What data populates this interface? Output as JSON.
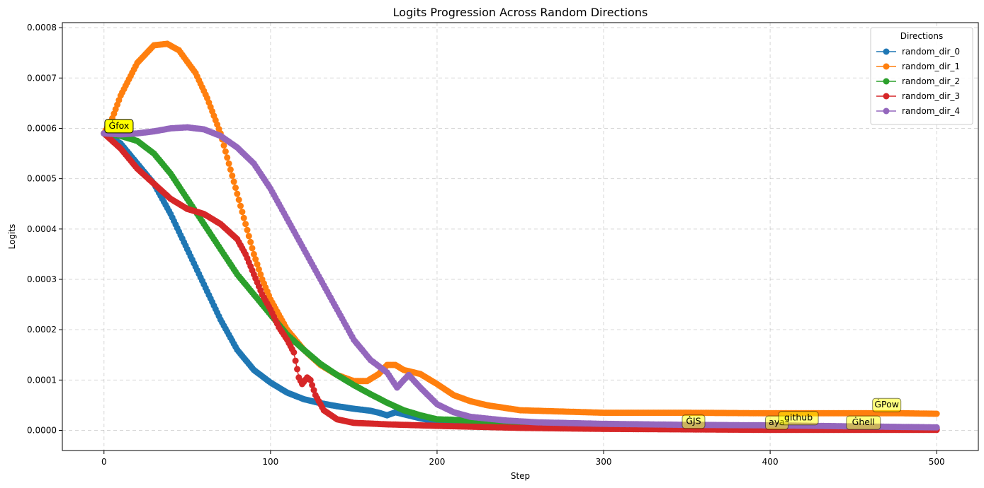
{
  "chart_data": {
    "type": "line",
    "title": "Logits Progression Across Random Directions",
    "xlabel": "Step",
    "ylabel": "Logits",
    "xlim": [
      -25,
      525
    ],
    "ylim": [
      -4e-05,
      0.00081
    ],
    "xticks": [
      0,
      100,
      200,
      300,
      400,
      500
    ],
    "yticks": [
      0.0,
      0.0001,
      0.0002,
      0.0003,
      0.0004,
      0.0005,
      0.0006,
      0.0007,
      0.0008
    ],
    "ytick_labels": [
      "0.0000",
      "0.0001",
      "0.0002",
      "0.0003",
      "0.0004",
      "0.0005",
      "0.0006",
      "0.0007",
      "0.0008"
    ],
    "grid": true,
    "legend": {
      "title": "Directions",
      "placement": "top-right"
    },
    "series": [
      {
        "name": "random_dir_0",
        "color": "#1f77b4",
        "points": [
          [
            0,
            0.00059
          ],
          [
            10,
            0.00057
          ],
          [
            20,
            0.00053
          ],
          [
            30,
            0.00049
          ],
          [
            40,
            0.00043
          ],
          [
            50,
            0.00036
          ],
          [
            60,
            0.00029
          ],
          [
            70,
            0.00022
          ],
          [
            80,
            0.00016
          ],
          [
            90,
            0.00012
          ],
          [
            100,
            9.5e-05
          ],
          [
            110,
            7.5e-05
          ],
          [
            120,
            6.2e-05
          ],
          [
            130,
            5.4e-05
          ],
          [
            140,
            4.8e-05
          ],
          [
            150,
            4.3e-05
          ],
          [
            160,
            3.9e-05
          ],
          [
            165,
            3.5e-05
          ],
          [
            170,
            3e-05
          ],
          [
            175,
            3.6e-05
          ],
          [
            180,
            3.2e-05
          ],
          [
            190,
            2.4e-05
          ],
          [
            200,
            1.7e-05
          ],
          [
            220,
            1.1e-05
          ],
          [
            250,
            8e-06
          ],
          [
            300,
            6e-06
          ],
          [
            350,
            5e-06
          ],
          [
            400,
            4e-06
          ],
          [
            450,
            4e-06
          ],
          [
            500,
            3e-06
          ]
        ]
      },
      {
        "name": "random_dir_1",
        "color": "#ff7f0e",
        "points": [
          [
            0,
            0.00059
          ],
          [
            5,
            0.00062
          ],
          [
            10,
            0.000665
          ],
          [
            20,
            0.00073
          ],
          [
            30,
            0.000765
          ],
          [
            38,
            0.000768
          ],
          [
            45,
            0.000755
          ],
          [
            55,
            0.00071
          ],
          [
            62,
            0.00066
          ],
          [
            70,
            0.00059
          ],
          [
            75,
            0.00053
          ],
          [
            80,
            0.00047
          ],
          [
            85,
            0.00041
          ],
          [
            90,
            0.00035
          ],
          [
            95,
            0.0003
          ],
          [
            100,
            0.00026
          ],
          [
            110,
            0.0002
          ],
          [
            120,
            0.00016
          ],
          [
            130,
            0.00013
          ],
          [
            140,
            0.00011
          ],
          [
            150,
            9.8e-05
          ],
          [
            158,
            9.8e-05
          ],
          [
            165,
            0.000112
          ],
          [
            170,
            0.00013
          ],
          [
            175,
            0.00013
          ],
          [
            180,
            0.00012
          ],
          [
            190,
            0.000112
          ],
          [
            200,
            9.2e-05
          ],
          [
            210,
            7e-05
          ],
          [
            220,
            5.8e-05
          ],
          [
            230,
            5e-05
          ],
          [
            250,
            4e-05
          ],
          [
            270,
            3.8e-05
          ],
          [
            300,
            3.5e-05
          ],
          [
            350,
            3.5e-05
          ],
          [
            400,
            3.4e-05
          ],
          [
            450,
            3.4e-05
          ],
          [
            480,
            3.4e-05
          ],
          [
            500,
            3.3e-05
          ]
        ]
      },
      {
        "name": "random_dir_2",
        "color": "#2ca02c",
        "points": [
          [
            0,
            0.00059
          ],
          [
            10,
            0.000585
          ],
          [
            20,
            0.000575
          ],
          [
            30,
            0.00055
          ],
          [
            40,
            0.00051
          ],
          [
            50,
            0.00046
          ],
          [
            60,
            0.00041
          ],
          [
            70,
            0.00036
          ],
          [
            80,
            0.00031
          ],
          [
            90,
            0.00027
          ],
          [
            100,
            0.00023
          ],
          [
            110,
            0.00019
          ],
          [
            120,
            0.00016
          ],
          [
            130,
            0.000132
          ],
          [
            140,
            0.00011
          ],
          [
            150,
            9e-05
          ],
          [
            160,
            7.2e-05
          ],
          [
            170,
            5.5e-05
          ],
          [
            180,
            4e-05
          ],
          [
            190,
            3e-05
          ],
          [
            200,
            2.2e-05
          ],
          [
            210,
            2.1e-05
          ],
          [
            230,
            1.8e-05
          ],
          [
            250,
            1.2e-05
          ],
          [
            300,
            7e-06
          ],
          [
            350,
            5e-06
          ],
          [
            400,
            4e-06
          ],
          [
            450,
            4e-06
          ],
          [
            500,
            3e-06
          ]
        ]
      },
      {
        "name": "random_dir_3",
        "color": "#d62728",
        "points": [
          [
            0,
            0.00059
          ],
          [
            10,
            0.00056
          ],
          [
            20,
            0.00052
          ],
          [
            30,
            0.00049
          ],
          [
            40,
            0.00046
          ],
          [
            50,
            0.00044
          ],
          [
            60,
            0.00043
          ],
          [
            70,
            0.00041
          ],
          [
            80,
            0.00038
          ],
          [
            85,
            0.00035
          ],
          [
            90,
            0.00031
          ],
          [
            95,
            0.00027
          ],
          [
            100,
            0.00024
          ],
          [
            105,
            0.000205
          ],
          [
            110,
            0.00018
          ],
          [
            114,
            0.000155
          ],
          [
            117,
            0.000105
          ],
          [
            119,
            9.2e-05
          ],
          [
            122,
            0.000105
          ],
          [
            124,
            0.0001
          ],
          [
            127,
            7e-05
          ],
          [
            132,
            4e-05
          ],
          [
            140,
            2.2e-05
          ],
          [
            150,
            1.5e-05
          ],
          [
            170,
            1.2e-05
          ],
          [
            200,
            9e-06
          ],
          [
            250,
            5e-06
          ],
          [
            300,
            3e-06
          ],
          [
            350,
            2e-06
          ],
          [
            400,
            1e-06
          ],
          [
            450,
            1e-06
          ],
          [
            500,
            1e-06
          ]
        ]
      },
      {
        "name": "random_dir_4",
        "color": "#9467bd",
        "points": [
          [
            0,
            0.00059
          ],
          [
            10,
            0.000588
          ],
          [
            20,
            0.00059
          ],
          [
            30,
            0.000594
          ],
          [
            40,
            0.0006
          ],
          [
            50,
            0.000602
          ],
          [
            60,
            0.000598
          ],
          [
            70,
            0.000585
          ],
          [
            80,
            0.000562
          ],
          [
            90,
            0.00053
          ],
          [
            100,
            0.00048
          ],
          [
            110,
            0.00042
          ],
          [
            120,
            0.00036
          ],
          [
            130,
            0.0003
          ],
          [
            140,
            0.00024
          ],
          [
            150,
            0.00018
          ],
          [
            160,
            0.00014
          ],
          [
            170,
            0.000115
          ],
          [
            176,
            8.5e-05
          ],
          [
            180,
            0.0001
          ],
          [
            183,
            0.00011
          ],
          [
            190,
            8.5e-05
          ],
          [
            200,
            5.2e-05
          ],
          [
            210,
            3.6e-05
          ],
          [
            220,
            2.7e-05
          ],
          [
            240,
            2e-05
          ],
          [
            260,
            1.6e-05
          ],
          [
            300,
            1.3e-05
          ],
          [
            350,
            1.1e-05
          ],
          [
            400,
            1e-05
          ],
          [
            450,
            8e-06
          ],
          [
            500,
            6e-06
          ]
        ]
      }
    ],
    "annotations": [
      {
        "text": "Ġfox",
        "x": 9,
        "y": 0.000605,
        "color": "#ffff00",
        "alpha": 1.0
      },
      {
        "text": "ĠJS",
        "x": 354,
        "y": 1.8e-05,
        "color": "#ffff00",
        "alpha": 0.5
      },
      {
        "text": "aya",
        "x": 404,
        "y": 1.6e-05,
        "color": "#ffff00",
        "alpha": 0.5
      },
      {
        "text": "github",
        "x": 417,
        "y": 2.5e-05,
        "color": "#ffff00",
        "alpha": 0.5
      },
      {
        "text": "Ġhell",
        "x": 456,
        "y": 1.6e-05,
        "color": "#ffff00",
        "alpha": 0.5
      },
      {
        "text": "ĠPow",
        "x": 470,
        "y": 5.1e-05,
        "color": "#ffff00",
        "alpha": 0.5
      }
    ]
  }
}
